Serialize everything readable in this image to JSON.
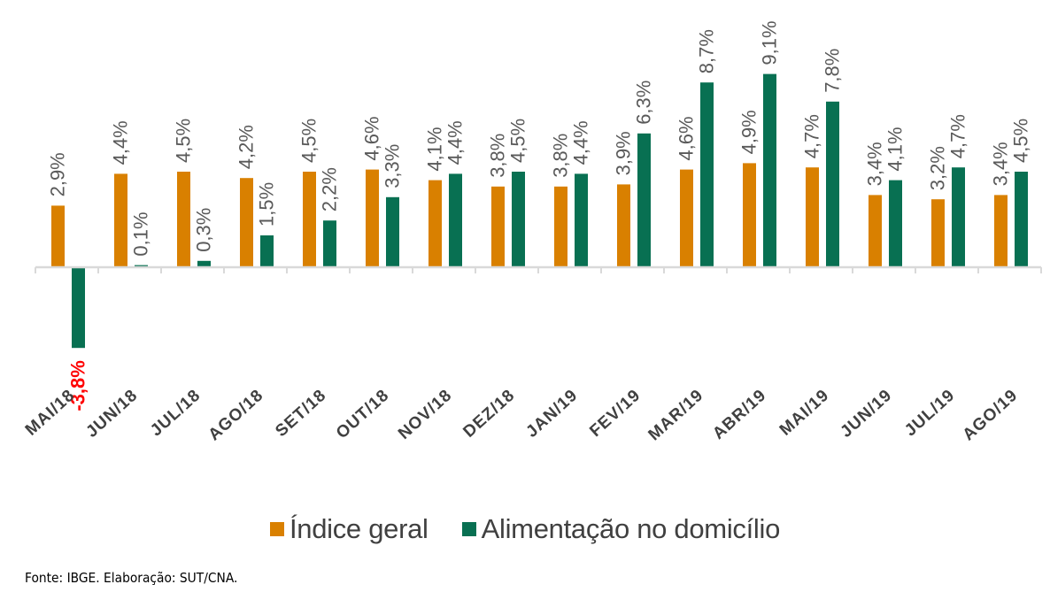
{
  "chart_data": {
    "type": "bar",
    "categories": [
      "MAI/18",
      "JUN/18",
      "JUL/18",
      "AGO/18",
      "SET/18",
      "OUT/18",
      "NOV/18",
      "DEZ/18",
      "JAN/19",
      "FEV/19",
      "MAR/19",
      "ABR/19",
      "MAI/19",
      "JUN/19",
      "JUL/19",
      "AGO/19"
    ],
    "series": [
      {
        "name": "Índice geral",
        "color": "#D98000",
        "values": [
          2.9,
          4.4,
          4.5,
          4.2,
          4.5,
          4.6,
          4.1,
          3.8,
          3.8,
          3.9,
          4.6,
          4.9,
          4.7,
          3.4,
          3.2,
          3.4
        ],
        "labels": [
          "2,9%",
          "4,4%",
          "4,5%",
          "4,2%",
          "4,5%",
          "4,6%",
          "4,1%",
          "3,8%",
          "3,8%",
          "3,9%",
          "4,6%",
          "4,9%",
          "4,7%",
          "3,4%",
          "3,2%",
          "3,4%"
        ]
      },
      {
        "name": "Alimentação no domicílio",
        "color": "#087052",
        "values": [
          -3.8,
          0.1,
          0.3,
          1.5,
          2.2,
          3.3,
          4.4,
          4.5,
          4.4,
          6.3,
          8.7,
          9.1,
          7.8,
          4.1,
          4.7,
          4.5
        ],
        "labels": [
          "-3,8%",
          "0,1%",
          "0,3%",
          "1,5%",
          "2,2%",
          "3,3%",
          "4,4%",
          "4,5%",
          "4,4%",
          "6,3%",
          "8,7%",
          "9,1%",
          "7,8%",
          "4,1%",
          "4,7%",
          "4,5%"
        ]
      }
    ],
    "negative_label_color": "#FF0000",
    "title": "",
    "xlabel": "",
    "ylabel": "",
    "ylim": [
      -3.8,
      9.1
    ],
    "grid": false,
    "legend_position": "bottom",
    "source": "Fonte: IBGE. Elaboração: SUT/CNA."
  }
}
